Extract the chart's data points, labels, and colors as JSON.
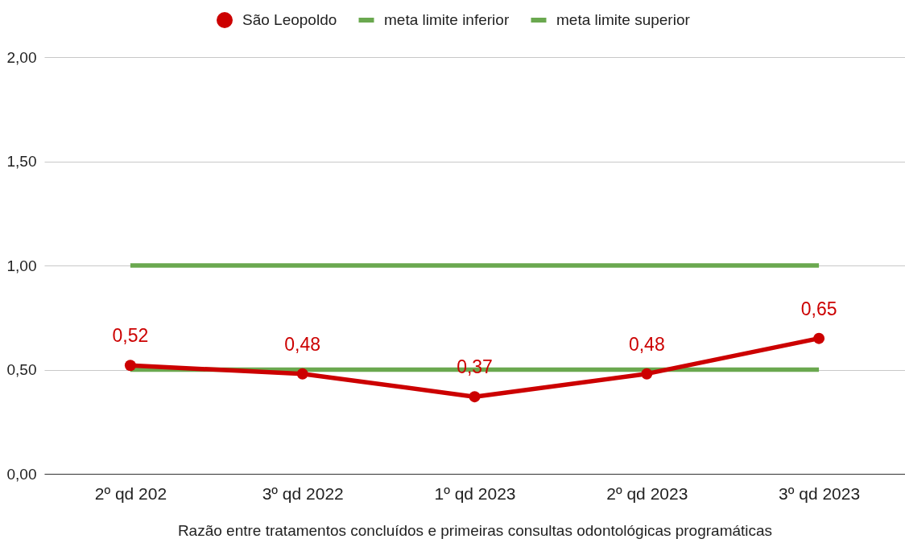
{
  "chart_data": {
    "type": "line",
    "categories": [
      "2º qd 202",
      "3º qd 2022",
      "1º qd 2023",
      "2º qd 2023",
      "3º qd 2023"
    ],
    "xlabel": "Razão entre tratamentos concluídos e primeiras consultas odontológicas programáticas",
    "ylim": [
      0,
      2
    ],
    "yticks": [
      {
        "value": 0,
        "label": "0,00"
      },
      {
        "value": 0.5,
        "label": "0,50"
      },
      {
        "value": 1,
        "label": "1,00"
      },
      {
        "value": 1.5,
        "label": "1,50"
      },
      {
        "value": 2,
        "label": "2,00"
      }
    ],
    "grid": "y",
    "legend": "top",
    "line_style": "solid",
    "series": [
      {
        "name": "São Leopoldo",
        "color": "#cc0000",
        "marker": "circle",
        "values": [
          0.52,
          0.48,
          0.37,
          0.48,
          0.65
        ],
        "value_labels": [
          "0,52",
          "0,48",
          "0,37",
          "0,48",
          "0,65"
        ]
      },
      {
        "name": "meta limite inferior",
        "color": "#6aa84f",
        "marker": "none",
        "values": [
          0.5,
          0.5,
          0.5,
          0.5,
          0.5
        ]
      },
      {
        "name": "meta limite superior",
        "color": "#6aa84f",
        "marker": "none",
        "values": [
          1,
          1,
          1,
          1,
          1
        ]
      }
    ]
  }
}
